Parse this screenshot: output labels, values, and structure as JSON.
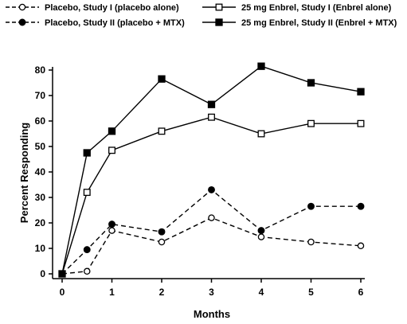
{
  "chart_data": {
    "type": "line",
    "title": "",
    "xlabel": "Months",
    "ylabel": "Percent Responding",
    "xlim": [
      0,
      6
    ],
    "ylim": [
      0,
      80
    ],
    "xticks": [
      0,
      1,
      2,
      3,
      4,
      5,
      6
    ],
    "yticks": [
      0,
      10,
      20,
      30,
      40,
      50,
      60,
      70,
      80
    ],
    "grid": false,
    "legend": "top",
    "series": [
      {
        "name": "Placebo, Study I (placebo alone)",
        "marker": "open-circle",
        "line": "dashed",
        "x": [
          0,
          0.5,
          1,
          2,
          3,
          4,
          5,
          6
        ],
        "y": [
          0,
          1,
          17,
          12.5,
          22,
          14.5,
          12.5,
          11
        ]
      },
      {
        "name": "Placebo, Study II (placebo + MTX)",
        "marker": "filled-circle",
        "line": "dashed",
        "x": [
          0,
          0.5,
          1,
          2,
          3,
          4,
          5,
          6
        ],
        "y": [
          0,
          9.5,
          19.5,
          16.5,
          33,
          17,
          26.5,
          26.5
        ]
      },
      {
        "name": "25 mg Enbrel, Study I (Enbrel alone)",
        "marker": "open-square",
        "line": "solid",
        "x": [
          0,
          0.5,
          1,
          2,
          3,
          4,
          5,
          6
        ],
        "y": [
          0,
          32,
          48.5,
          56,
          61.5,
          55,
          59,
          59
        ]
      },
      {
        "name": "25 mg Enbrel, Study II (Enbrel + MTX)",
        "marker": "filled-square",
        "line": "solid",
        "x": [
          0,
          0.5,
          1,
          2,
          3,
          4,
          5,
          6
        ],
        "y": [
          0,
          47.5,
          56,
          76.5,
          66.5,
          81.5,
          75,
          71.5
        ]
      }
    ]
  }
}
